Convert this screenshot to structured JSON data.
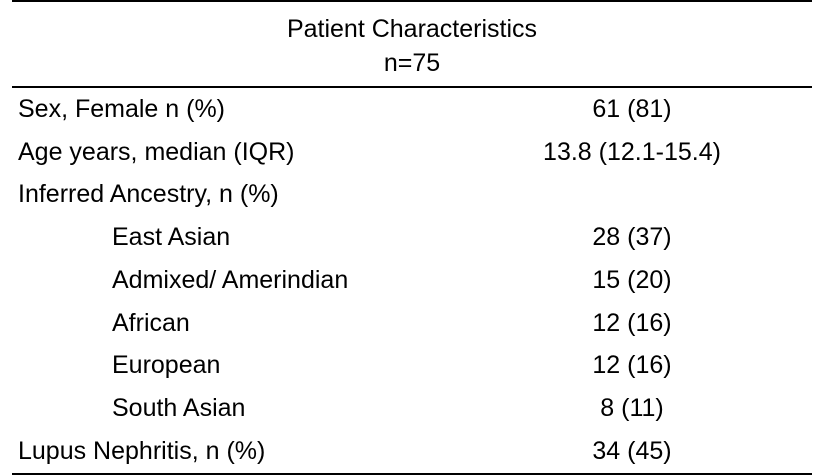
{
  "table": {
    "title": "Patient Characteristics",
    "subtitle": "n=75",
    "rows": [
      {
        "label": "Sex, Female n (%)",
        "value": "61 (81)"
      },
      {
        "label": "Age years,  median (IQR)",
        "value": "13.8 (12.1-15.4)"
      },
      {
        "label": "Inferred Ancestry, n (%)",
        "value": ""
      },
      {
        "label": "East Asian",
        "value": "28 (37)"
      },
      {
        "label": "Admixed/ Amerindian",
        "value": "15 (20)"
      },
      {
        "label": "African",
        "value": "12 (16)"
      },
      {
        "label": "European",
        "value": "12 (16)"
      },
      {
        "label": "South Asian",
        "value": "8 (11)"
      },
      {
        "label": "Lupus Nephritis, n (%)",
        "value": "34 (45)"
      }
    ]
  }
}
